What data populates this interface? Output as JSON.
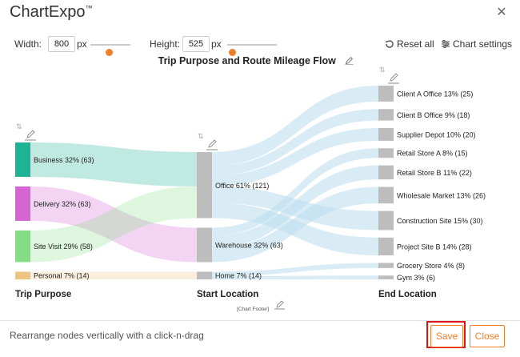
{
  "dialog": {
    "brand": "ChartExpo",
    "brand_mark": "™",
    "close_icon": "close-icon"
  },
  "controls": {
    "width_label": "Width:",
    "width_value": "800",
    "width_unit": "px",
    "width_slider_fraction": 0.45,
    "height_label": "Height:",
    "height_value": "525",
    "height_unit": "px",
    "height_slider_fraction": 0.1,
    "reset_label": "Reset all",
    "settings_label": "Chart settings"
  },
  "chart_data": {
    "type": "sankey",
    "title": "Trip Purpose and Route Mileage Flow",
    "footer": "[Chart Footer]",
    "columns": [
      {
        "label": "Trip Purpose",
        "nodes": [
          {
            "id": "business",
            "label": "Business 32% (63)",
            "value": 63,
            "color": "#1db394"
          },
          {
            "id": "delivery",
            "label": "Delivery 32% (63)",
            "value": 63,
            "color": "#d565d3"
          },
          {
            "id": "sitevisit",
            "label": "Site Visit 29% (58)",
            "value": 58,
            "color": "#84dd84"
          },
          {
            "id": "personal",
            "label": "Personal 7% (14)",
            "value": 14,
            "color": "#eec481"
          }
        ]
      },
      {
        "label": "Start Location",
        "nodes": [
          {
            "id": "office",
            "label": "Office 61% (121)",
            "value": 121,
            "color": "#bdbdbd"
          },
          {
            "id": "warehouse",
            "label": "Warehouse 32% (63)",
            "value": 63,
            "color": "#bdbdbd"
          },
          {
            "id": "home",
            "label": "Home 7% (14)",
            "value": 14,
            "color": "#bdbdbd"
          }
        ]
      },
      {
        "label": "End Location",
        "nodes": [
          {
            "id": "clientA",
            "label": "Client A Office 13% (25)",
            "value": 25,
            "color": "#bdbdbd"
          },
          {
            "id": "clientB",
            "label": "Client B Office 9% (18)",
            "value": 18,
            "color": "#bdbdbd"
          },
          {
            "id": "supplier",
            "label": "Supplier Depot 10% (20)",
            "value": 20,
            "color": "#bdbdbd"
          },
          {
            "id": "retailA",
            "label": "Retail Store A 8% (15)",
            "value": 15,
            "color": "#bdbdbd"
          },
          {
            "id": "retailB",
            "label": "Retail Store B 11% (22)",
            "value": 22,
            "color": "#bdbdbd"
          },
          {
            "id": "wholesale",
            "label": "Wholesale Market 13% (26)",
            "value": 26,
            "color": "#bdbdbd"
          },
          {
            "id": "construction",
            "label": "Construction Site 15% (30)",
            "value": 30,
            "color": "#bdbdbd"
          },
          {
            "id": "projectB",
            "label": "Project Site B 14% (28)",
            "value": 28,
            "color": "#bdbdbd"
          },
          {
            "id": "grocery",
            "label": "Grocery Store 4% (8)",
            "value": 8,
            "color": "#bdbdbd"
          },
          {
            "id": "gym",
            "label": "Gym 3% (6)",
            "value": 6,
            "color": "#bdbdbd"
          }
        ]
      }
    ],
    "links": [
      {
        "source": "business",
        "target": "office",
        "value": 63
      },
      {
        "source": "delivery",
        "target": "warehouse",
        "value": 63
      },
      {
        "source": "sitevisit",
        "target": "office",
        "value": 58
      },
      {
        "source": "personal",
        "target": "home",
        "value": 14
      },
      {
        "source": "office",
        "target": "clientA",
        "value": 25
      },
      {
        "source": "office",
        "target": "clientB",
        "value": 18
      },
      {
        "source": "office",
        "target": "supplier",
        "value": 20
      },
      {
        "source": "office",
        "target": "construction",
        "value": 30
      },
      {
        "source": "office",
        "target": "projectB",
        "value": 28
      },
      {
        "source": "warehouse",
        "target": "retailA",
        "value": 15
      },
      {
        "source": "warehouse",
        "target": "retailB",
        "value": 22
      },
      {
        "source": "warehouse",
        "target": "wholesale",
        "value": 26
      },
      {
        "source": "home",
        "target": "grocery",
        "value": 8
      },
      {
        "source": "home",
        "target": "gym",
        "value": 6
      }
    ]
  },
  "footer": {
    "hint": "Rearrange nodes vertically with a click-n-drag",
    "save_label": "Save",
    "close_label": "Close"
  },
  "colors": {
    "accent": "#f07f2c",
    "highlight": "#e0151a",
    "node_gray": "#bdbdbd"
  }
}
